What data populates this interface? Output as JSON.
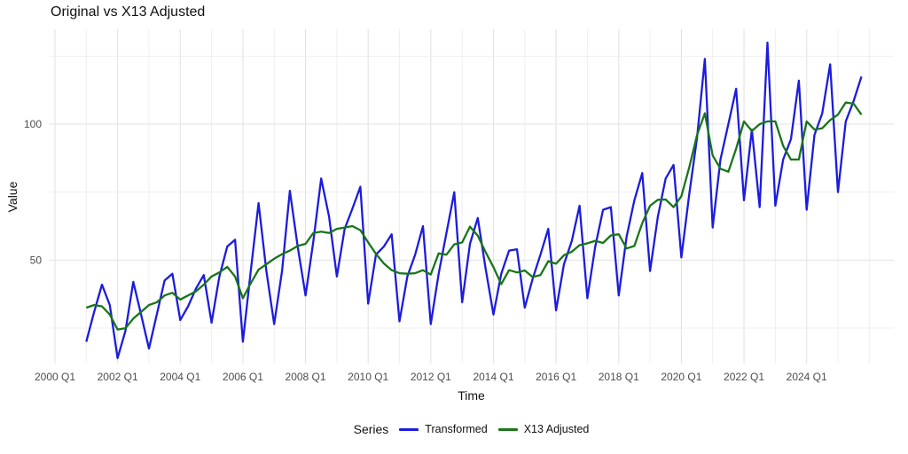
{
  "title": "Original vs X13 Adjusted",
  "axes": {
    "x_label": "Time",
    "y_label": "Value"
  },
  "legend": {
    "title": "Series",
    "position": "bottom"
  },
  "colors": {
    "background": "#ffffff",
    "grid_major": "#e3e3e3",
    "grid_minor": "#efefef",
    "tick_text": "#4d4d4d",
    "title_text": "#111111"
  },
  "chart_data": {
    "type": "line",
    "title": "Original vs X13 Adjusted",
    "xlabel": "Time",
    "ylabel": "Value",
    "legend_title": "Series",
    "grid": true,
    "legend_position": "bottom",
    "y_ticks": [
      50,
      100
    ],
    "y_minor_ticks": [
      25,
      75,
      125
    ],
    "x_tick_labels": [
      "2000 Q1",
      "2002 Q1",
      "2004 Q1",
      "2006 Q1",
      "2008 Q1",
      "2010 Q1",
      "2012 Q1",
      "2014 Q1",
      "2016 Q1",
      "2018 Q1",
      "2020 Q1",
      "2022 Q1",
      "2024 Q1"
    ],
    "x_domain_years": [
      1999.8,
      2026.8
    ],
    "ylim": [
      12,
      135
    ],
    "x": [
      "2001 Q1",
      "2001 Q2",
      "2001 Q3",
      "2001 Q4",
      "2002 Q1",
      "2002 Q2",
      "2002 Q3",
      "2002 Q4",
      "2003 Q1",
      "2003 Q2",
      "2003 Q3",
      "2003 Q4",
      "2004 Q1",
      "2004 Q2",
      "2004 Q3",
      "2004 Q4",
      "2005 Q1",
      "2005 Q2",
      "2005 Q3",
      "2005 Q4",
      "2006 Q1",
      "2006 Q2",
      "2006 Q3",
      "2006 Q4",
      "2007 Q1",
      "2007 Q2",
      "2007 Q3",
      "2007 Q4",
      "2008 Q1",
      "2008 Q2",
      "2008 Q3",
      "2008 Q4",
      "2009 Q1",
      "2009 Q2",
      "2009 Q3",
      "2009 Q4",
      "2010 Q1",
      "2010 Q2",
      "2010 Q3",
      "2010 Q4",
      "2011 Q1",
      "2011 Q2",
      "2011 Q3",
      "2011 Q4",
      "2012 Q1",
      "2012 Q2",
      "2012 Q3",
      "2012 Q4",
      "2013 Q1",
      "2013 Q2",
      "2013 Q3",
      "2013 Q4",
      "2014 Q1",
      "2014 Q2",
      "2014 Q3",
      "2014 Q4",
      "2015 Q1",
      "2015 Q2",
      "2015 Q3",
      "2015 Q4",
      "2016 Q1",
      "2016 Q2",
      "2016 Q3",
      "2016 Q4",
      "2017 Q1",
      "2017 Q2",
      "2017 Q3",
      "2017 Q4",
      "2018 Q1",
      "2018 Q2",
      "2018 Q3",
      "2018 Q4",
      "2019 Q1",
      "2019 Q2",
      "2019 Q3",
      "2019 Q4",
      "2020 Q1",
      "2020 Q2",
      "2020 Q3",
      "2020 Q4",
      "2021 Q1",
      "2021 Q2",
      "2021 Q3",
      "2021 Q4",
      "2022 Q1",
      "2022 Q2",
      "2022 Q3",
      "2022 Q4",
      "2023 Q1",
      "2023 Q2",
      "2023 Q3",
      "2023 Q4",
      "2024 Q1",
      "2024 Q2",
      "2024 Q3",
      "2024 Q4",
      "2025 Q1",
      "2025 Q2",
      "2025 Q3",
      "2025 Q4"
    ],
    "series": [
      {
        "name": "Transformed",
        "color": "#1c1cdc",
        "values": [
          20,
          31,
          41,
          33.5,
          14,
          24,
          42,
          30,
          17.5,
          30,
          42.5,
          45,
          28,
          33,
          39.5,
          44.5,
          27,
          44,
          55,
          57.5,
          20,
          46,
          71,
          46,
          26.5,
          46,
          75.5,
          55,
          37,
          57,
          80,
          66,
          44,
          61.5,
          69,
          77,
          34,
          52,
          55,
          59.5,
          27.5,
          44,
          52,
          62.5,
          26.5,
          45,
          60,
          75,
          34.5,
          56,
          65.5,
          47,
          30,
          45,
          53.5,
          54,
          32.5,
          43,
          52,
          61.5,
          31.5,
          48.5,
          57,
          70,
          36,
          55,
          68.5,
          69.5,
          37,
          58.5,
          72,
          82,
          46,
          66,
          80,
          85,
          51,
          74,
          95,
          124,
          62,
          87,
          100,
          113,
          72,
          98,
          69.5,
          130,
          70,
          87,
          94.5,
          116,
          68.5,
          96,
          104,
          122,
          75,
          101,
          108.5,
          117.5
        ]
      },
      {
        "name": "X13 Adjusted",
        "color": "#197519",
        "values": [
          32.5,
          33.5,
          33,
          30,
          24.5,
          25,
          28.5,
          31,
          33.5,
          34.5,
          37,
          38,
          35.5,
          37,
          38.5,
          41,
          44,
          45.5,
          47.5,
          44,
          36,
          41.5,
          46.5,
          48.5,
          50.5,
          52.2,
          53.5,
          55.2,
          56,
          60,
          60.5,
          60,
          61.5,
          62,
          62.5,
          61,
          56.5,
          52.3,
          48.8,
          46.3,
          45.2,
          45,
          45.2,
          46.3,
          44.7,
          52.5,
          52,
          55.8,
          56.5,
          62.3,
          59,
          53,
          47.4,
          41.2,
          46.3,
          45.5,
          46.2,
          43.8,
          44.5,
          49.6,
          48.7,
          51.8,
          53.1,
          55.5,
          56.2,
          57.1,
          56.3,
          59.1,
          59.5,
          54.3,
          55.2,
          63.6,
          70,
          72.2,
          72.3,
          69.5,
          73.5,
          84,
          96,
          104,
          88.5,
          83.6,
          82.5,
          91,
          101,
          97.5,
          100,
          101,
          101,
          92,
          87,
          87,
          101,
          98,
          98.5,
          101.5,
          103.5,
          108,
          107.5,
          103.5
        ]
      }
    ]
  }
}
